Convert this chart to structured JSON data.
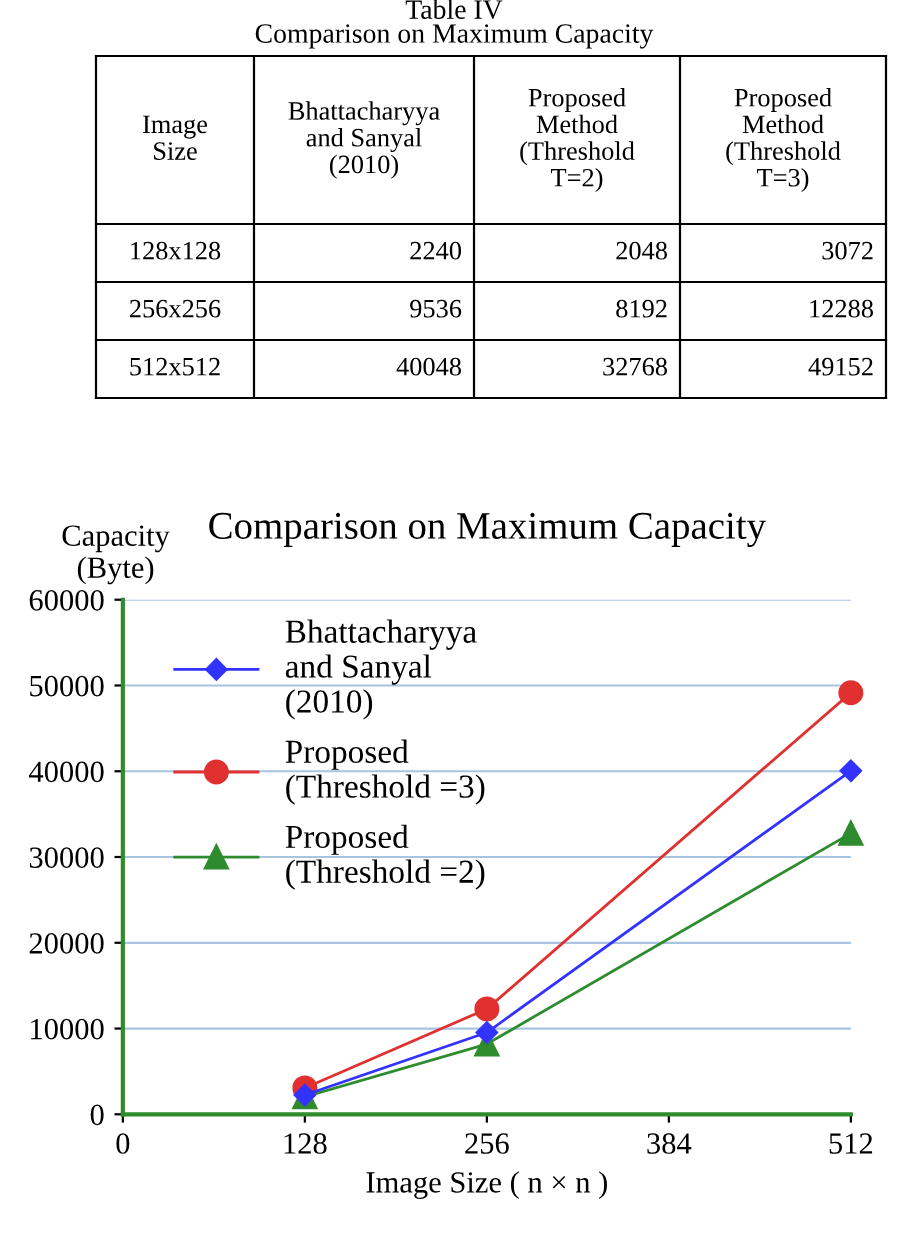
{
  "chart_data": [
    {
      "type": "other",
      "title": "Table IV",
      "subtitle": "Comparison on Maximum Capacity",
      "annotations": [
        "Image\nSize",
        "Bhattacharyya\nand Sanyal\n(2010)",
        "Proposed\nMethod\n(Threshold\nT=2)",
        "Proposed\nMethod\n(Threshold\nT=3)",
        "128x128",
        "2240",
        "2048",
        "3072",
        "256x256",
        "9536",
        "8192",
        "12288",
        "512x512",
        "40048",
        "32768",
        "49152"
      ]
    },
    {
      "type": "line",
      "title": "Comparison on Maximum Capacity",
      "xlabel": "Image Size ( n × n )",
      "ylabel": "Capacity\n(Byte)",
      "x": [
        128,
        256,
        512
      ],
      "series": [
        {
          "name": "Bhattacharyya\nand Sanyal\n(2010)",
          "color": "#3333ff",
          "marker": "diamond",
          "values": [
            2240,
            9536,
            40048
          ]
        },
        {
          "name": "Proposed\n(Threshold =3)",
          "color": "#e03030",
          "marker": "circle",
          "values": [
            3072,
            12288,
            49152
          ]
        },
        {
          "name": "Proposed\n(Threshold =2)",
          "color": "#2e8b2e",
          "marker": "triangle",
          "values": [
            2048,
            8192,
            32768
          ]
        }
      ],
      "xlim": [
        0,
        512
      ],
      "xticks": [
        0,
        128,
        256,
        384,
        512
      ],
      "ylim": [
        0,
        60000
      ],
      "yticks": [
        0,
        10000,
        20000,
        30000,
        40000,
        50000,
        60000
      ],
      "grid": "y",
      "legend": "top left",
      "line_style": "solid"
    }
  ]
}
